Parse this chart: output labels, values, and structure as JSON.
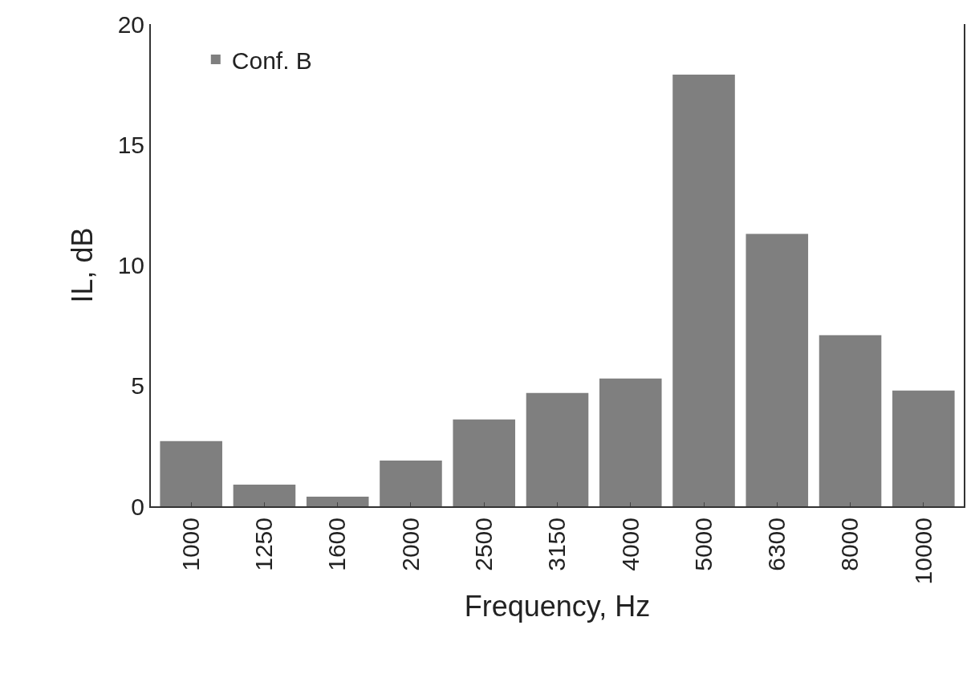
{
  "chart_data": {
    "type": "bar",
    "xlabel": "Frequency, Hz",
    "ylabel": "IL, dB",
    "categories": [
      "1000",
      "1250",
      "1600",
      "2000",
      "2500",
      "3150",
      "4000",
      "5000",
      "6300",
      "8000",
      "10000"
    ],
    "series": [
      {
        "name": "Conf. B",
        "color": "#7f7f7f",
        "values": [
          2.7,
          0.9,
          0.4,
          1.9,
          3.6,
          4.7,
          5.3,
          17.9,
          11.3,
          7.1,
          4.8
        ]
      }
    ],
    "ylim": [
      0,
      20
    ],
    "yticks": [
      0,
      5,
      10,
      15,
      20
    ],
    "grid": false,
    "legend": "top left"
  }
}
